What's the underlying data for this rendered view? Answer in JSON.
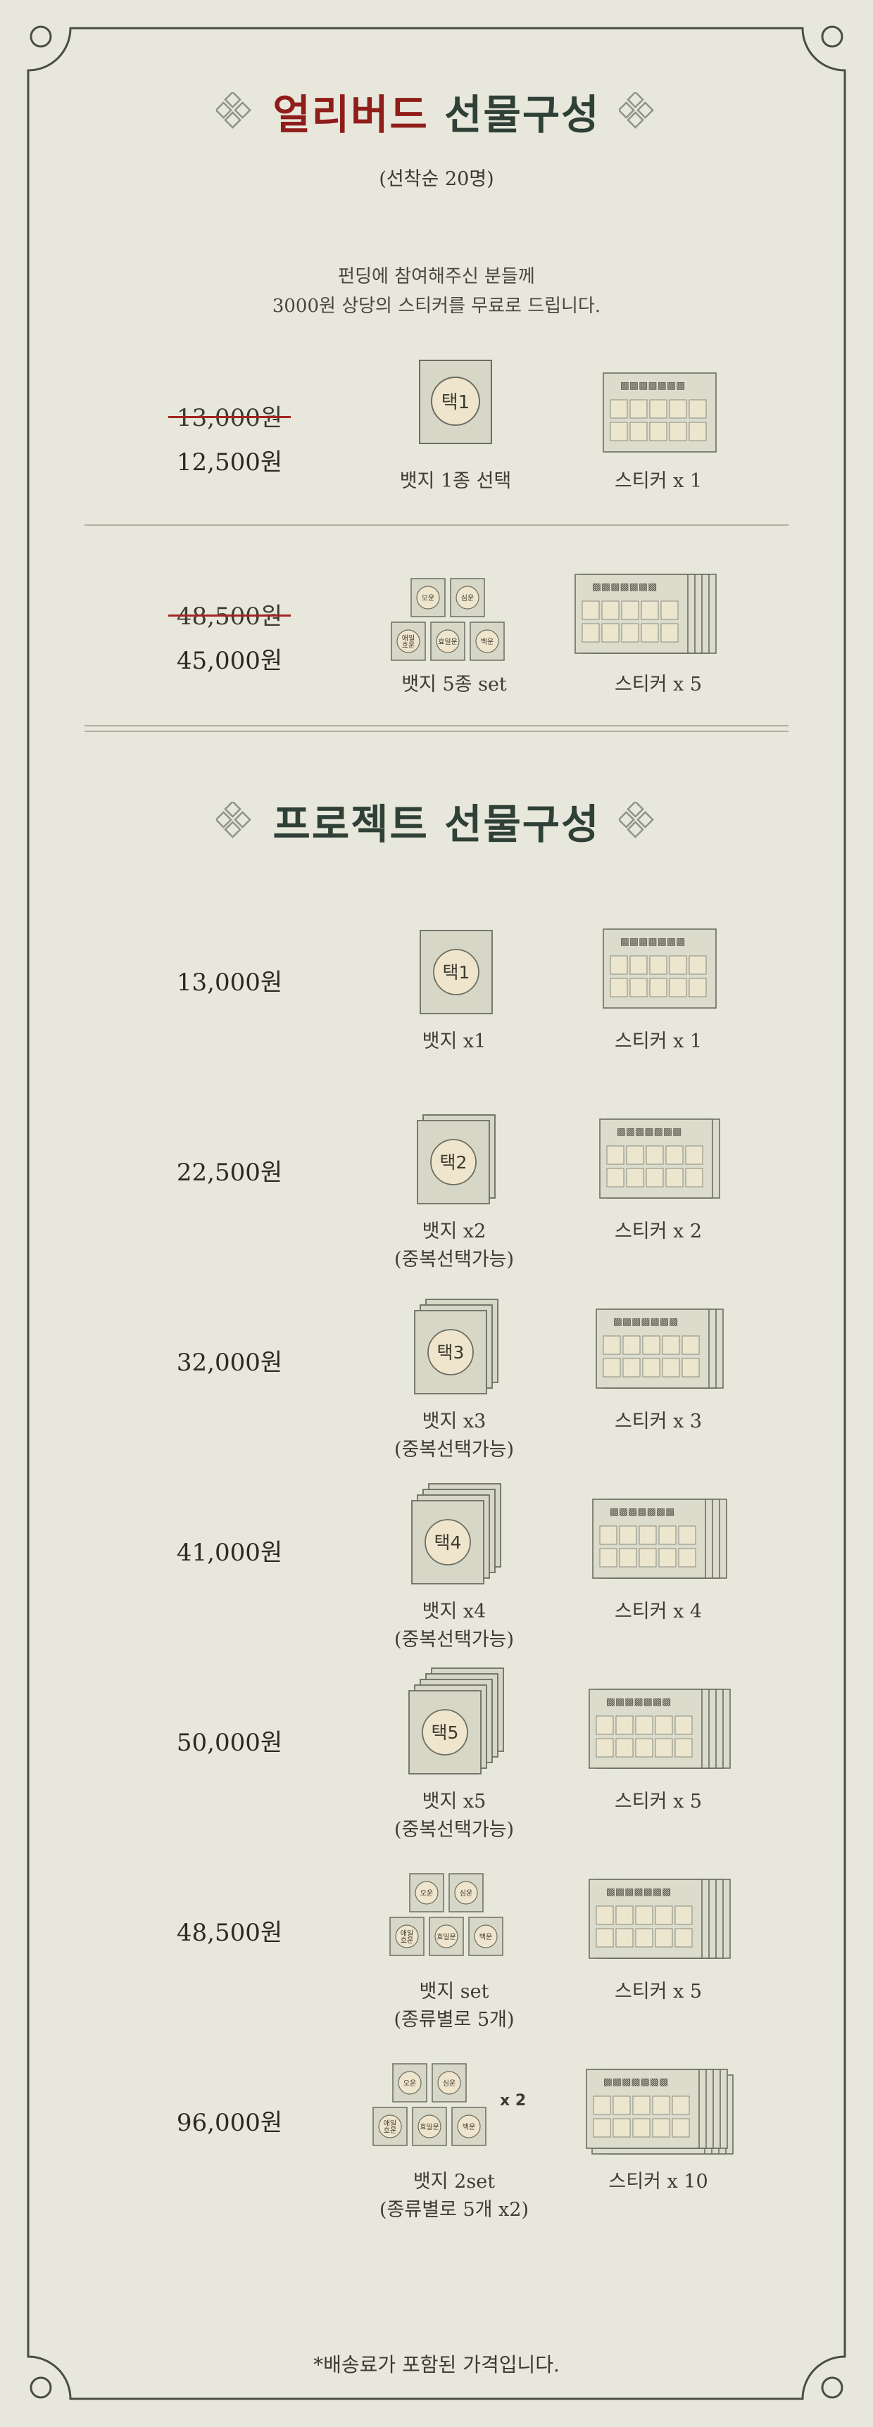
{
  "earlybird": {
    "title_red": "얼리버드",
    "title_rest": "선물구성",
    "subtitle": "(선착순 20명)",
    "intro_line1": "펀딩에 참여해주신 분들께",
    "intro_line2": "3000원 상당의 스티커를 무료로 드립니다.",
    "rows": [
      {
        "old_price": "13,000원",
        "price": "12,500원",
        "badge_label": "뱃지 1종 선택",
        "badge_text": "택1",
        "sticker_label": "스티커 x 1"
      },
      {
        "old_price": "48,500원",
        "price": "45,000원",
        "badge_label": "뱃지 5종 set",
        "sticker_label": "스티커 x 5"
      }
    ]
  },
  "project": {
    "title": "프로젝트 선물구성",
    "rows": [
      {
        "price": "13,000원",
        "badge_text": "택1",
        "badge_label": "뱃지 x1",
        "badge_note": "",
        "sticker_label": "스티커 x 1"
      },
      {
        "price": "22,500원",
        "badge_text": "택2",
        "badge_label": "뱃지 x2",
        "badge_note": "(중복선택가능)",
        "sticker_label": "스티커 x 2"
      },
      {
        "price": "32,000원",
        "badge_text": "택3",
        "badge_label": "뱃지 x3",
        "badge_note": "(중복선택가능)",
        "sticker_label": "스티커 x 3"
      },
      {
        "price": "41,000원",
        "badge_text": "택4",
        "badge_label": "뱃지 x4",
        "badge_note": "(중복선택가능)",
        "sticker_label": "스티커 x 4"
      },
      {
        "price": "50,000원",
        "badge_text": "택5",
        "badge_label": "뱃지 x5",
        "badge_note": "(중복선택가능)",
        "sticker_label": "스티커 x 5"
      },
      {
        "price": "48,500원",
        "badge_label": "뱃지 set",
        "badge_note": "(종류별로 5개)",
        "sticker_label": "스티커 x 5"
      },
      {
        "price": "96,000원",
        "badge_label": "뱃지 2set",
        "badge_note": "(종류별로 5개 x2)",
        "multiplier": "x 2",
        "sticker_label": "스티커 x 10"
      }
    ]
  },
  "badge_set_labels": [
    "오운",
    "심운",
    "애일\n호운",
    "효일운",
    "백운"
  ],
  "footnote": "*배송료가 포함된 가격입니다.",
  "colors": {
    "background": "#e8e7dc",
    "accent_red": "#8f1d1a",
    "title_green": "#2f4036",
    "line": "#4a4d45"
  },
  "icons": [
    "diamond-ornament-icon",
    "badge-card-icon",
    "sticker-sheet-icon"
  ]
}
